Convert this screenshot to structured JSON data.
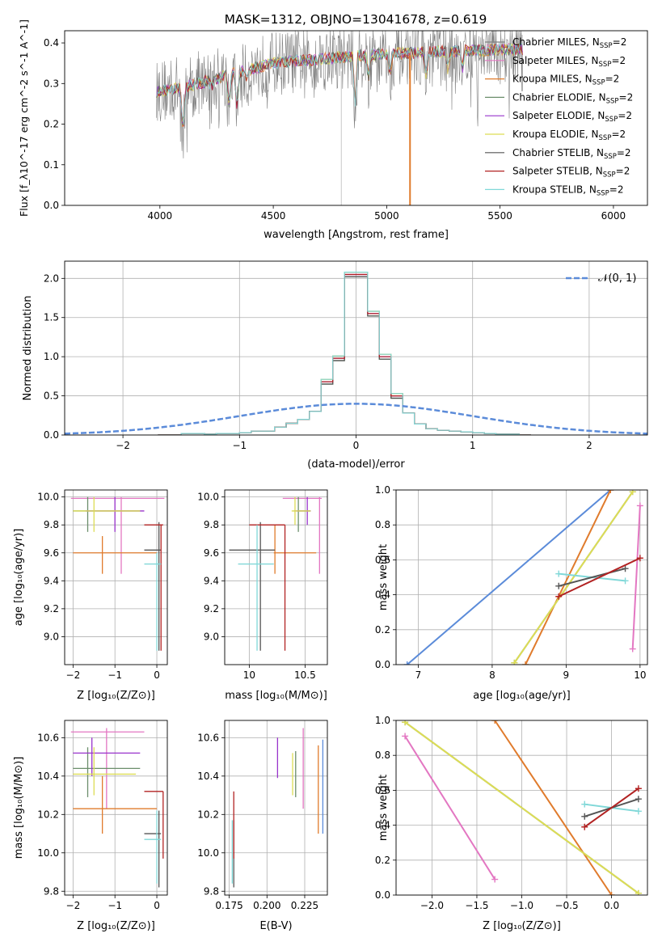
{
  "figure_title": "MASK=1312, OBJNO=13041678, z=0.619",
  "colors": {
    "chabrier_miles": "#808080",
    "salpeter_miles": "#e377c2",
    "kroupa_miles": "#e07b2c",
    "chabrier_elodie": "#6b8e6b",
    "salpeter_elodie": "#9933cc",
    "kroupa_elodie": "#dddd55",
    "chabrier_stelib": "#555555",
    "salpeter_stelib": "#b22222",
    "kroupa_stelib": "#80d8d8",
    "gaussian": "#5b8bd9"
  },
  "chart_data": [
    {
      "id": "spectrum",
      "type": "line",
      "xlabel": "wavelength [Angstrom, rest frame]",
      "ylabel": "Flux [f_λ10^-17 erg cm^-2 s^-1 A^-1]",
      "xlim": [
        3580,
        6150
      ],
      "ylim": [
        0,
        0.43
      ],
      "xticks": [
        4000,
        4500,
        5000,
        5500,
        6000
      ],
      "yticks": [
        0.0,
        0.1,
        0.2,
        0.3,
        0.4
      ],
      "grid": false,
      "legend_position": "right",
      "legend": [
        {
          "label": "Chabrier MILES, N",
          "sub": "SSP",
          "suffix": "=2",
          "color": "#808080"
        },
        {
          "label": "Salpeter MILES, N",
          "sub": "SSP",
          "suffix": "=2",
          "color": "#e377c2"
        },
        {
          "label": "Kroupa MILES, N",
          "sub": "SSP",
          "suffix": "=2",
          "color": "#e07b2c"
        },
        {
          "label": "Chabrier ELODIE, N",
          "sub": "SSP",
          "suffix": "=2",
          "color": "#6b8e6b"
        },
        {
          "label": "Salpeter ELODIE, N",
          "sub": "SSP",
          "suffix": "=2",
          "color": "#9933cc"
        },
        {
          "label": "Kroupa ELODIE, N",
          "sub": "SSP",
          "suffix": "=2",
          "color": "#dddd55"
        },
        {
          "label": "Chabrier STELIB, N",
          "sub": "SSP",
          "suffix": "=2",
          "color": "#555555"
        },
        {
          "label": "Salpeter STELIB, N",
          "sub": "SSP",
          "suffix": "=2",
          "color": "#b22222"
        },
        {
          "label": "Kroupa STELIB, N",
          "sub": "SSP",
          "suffix": "=2",
          "color": "#80d8d8"
        }
      ],
      "data_range": [
        3985,
        5600
      ],
      "continuum": [
        [
          3985,
          0.28
        ],
        [
          4100,
          0.29
        ],
        [
          4300,
          0.32
        ],
        [
          4500,
          0.35
        ],
        [
          4700,
          0.36
        ],
        [
          4900,
          0.37
        ],
        [
          5100,
          0.375
        ],
        [
          5300,
          0.38
        ],
        [
          5600,
          0.385
        ]
      ],
      "absorption_dips": [
        [
          4102,
          0.15
        ],
        [
          4227,
          0.28
        ],
        [
          4305,
          0.22
        ],
        [
          4340,
          0.22
        ],
        [
          4383,
          0.3
        ],
        [
          4861,
          0.23
        ],
        [
          4920,
          0.3
        ],
        [
          5015,
          0.31
        ],
        [
          5175,
          0.3
        ],
        [
          5270,
          0.32
        ],
        [
          5335,
          0.33
        ]
      ],
      "spikes": [
        [
          4800,
          0.0
        ],
        [
          5103,
          0.0
        ]
      ]
    },
    {
      "id": "residuals",
      "type": "line",
      "xlabel": "(data-model)/error",
      "ylabel": "Normed distribution",
      "xlim": [
        -2.5,
        2.5
      ],
      "ylim": [
        0,
        2.22
      ],
      "xticks": [
        -2,
        -1,
        0,
        1,
        2
      ],
      "yticks": [
        0.0,
        0.5,
        1.0,
        1.5,
        2.0
      ],
      "grid": true,
      "legend_position": "top-right",
      "legend": [
        {
          "label": "𝒩(0, 1)",
          "color": "#5b8bd9",
          "dashed": true
        }
      ],
      "bin_edges": [
        -1.7,
        -1.6,
        -1.5,
        -1.4,
        -1.3,
        -1.2,
        -1.1,
        -1.0,
        -0.9,
        -0.8,
        -0.7,
        -0.6,
        -0.5,
        -0.4,
        -0.3,
        -0.2,
        -0.1,
        0.0,
        0.1,
        0.2,
        0.3,
        0.4,
        0.5,
        0.6,
        0.7,
        0.8,
        0.9,
        1.0,
        1.1,
        1.2,
        1.3,
        1.4,
        1.5
      ],
      "histogram": [
        0.0,
        0.0,
        0.02,
        0.02,
        0.01,
        0.02,
        0.02,
        0.03,
        0.05,
        0.05,
        0.1,
        0.15,
        0.2,
        0.3,
        0.68,
        0.98,
        2.05,
        2.05,
        1.55,
        1.0,
        0.5,
        0.28,
        0.14,
        0.08,
        0.06,
        0.05,
        0.04,
        0.03,
        0.02,
        0.01,
        0.01,
        0.0
      ],
      "gaussian": {
        "mu": 0,
        "sigma": 1
      }
    },
    {
      "id": "age_vs_Z",
      "type": "scatter",
      "xlabel": "Z [log₁₀(Z/Z⊙)]",
      "ylabel": "age  [log₁₀(age/yr)]",
      "xlim": [
        -2.2,
        0.25
      ],
      "ylim": [
        8.8,
        10.05
      ],
      "xticks": [
        -2,
        -1,
        0
      ],
      "xtick_labels": [
        "−2",
        "−1",
        "0"
      ],
      "yticks": [
        9.0,
        9.2,
        9.4,
        9.6,
        9.8,
        10.0
      ],
      "yticklabels": [
        "9.0",
        "9.2",
        "9.4",
        "9.6",
        "9.8",
        "10.0"
      ],
      "grid": true,
      "points": [
        {
          "x": -0.85,
          "y": 9.99,
          "x_span": [
            -2.05,
            0.18
          ],
          "y_span": [
            9.45,
            10.0
          ],
          "color": "#e377c2"
        },
        {
          "x": -1.3,
          "y": 9.6,
          "x_span": [
            -2.0,
            0.0
          ],
          "y_span": [
            9.45,
            9.72
          ],
          "color": "#e07b2c"
        },
        {
          "x": -1.65,
          "y": 9.9,
          "x_span": [
            -2.0,
            -0.4
          ],
          "y_span": [
            9.75,
            10.0
          ],
          "color": "#6b8e6b"
        },
        {
          "x": -1.0,
          "y": 9.9,
          "x_span": [
            -1.7,
            -0.3
          ],
          "y_span": [
            9.75,
            10.0
          ],
          "color": "#9933cc"
        },
        {
          "x": -1.5,
          "y": 9.9,
          "x_span": [
            -2.0,
            -0.4
          ],
          "y_span": [
            9.75,
            10.0
          ],
          "color": "#dddd55"
        },
        {
          "x": 0.05,
          "y": 9.62,
          "x_span": [
            -0.3,
            0.1
          ],
          "y_span": [
            8.9,
            9.82
          ],
          "color": "#555555"
        },
        {
          "x": 0.1,
          "y": 9.8,
          "x_span": [
            -0.3,
            0.15
          ],
          "y_span": [
            8.9,
            9.8
          ],
          "color": "#b22222"
        },
        {
          "x": 0.0,
          "y": 9.52,
          "x_span": [
            -0.3,
            0.1
          ],
          "y_span": [
            8.9,
            9.6
          ],
          "color": "#80d8d8"
        }
      ]
    },
    {
      "id": "age_vs_mass",
      "type": "scatter",
      "xlabel": "mass [log₁₀(M/M⊙)]",
      "ylabel": "",
      "xlim": [
        9.78,
        10.7
      ],
      "ylim": [
        8.8,
        10.05
      ],
      "xticks": [
        10.0,
        10.5
      ],
      "xticklabels": [
        "10",
        "10.5"
      ],
      "yticks": [
        9.0,
        9.2,
        9.4,
        9.6,
        9.8,
        10.0
      ],
      "yticklabels": [
        "9.0",
        "9.2",
        "9.4",
        "9.6",
        "9.8",
        "10.0"
      ],
      "grid": true,
      "points": [
        {
          "x": 10.63,
          "y": 9.99,
          "x_span": [
            10.3,
            10.65
          ],
          "y_span": [
            9.45,
            10.0
          ],
          "color": "#e377c2"
        },
        {
          "x": 10.23,
          "y": 9.6,
          "x_span": [
            10.22,
            10.6
          ],
          "y_span": [
            9.45,
            9.8
          ],
          "color": "#e07b2c"
        },
        {
          "x": 10.44,
          "y": 9.9,
          "x_span": [
            10.43,
            10.55
          ],
          "y_span": [
            9.75,
            10.0
          ],
          "color": "#6b8e6b"
        },
        {
          "x": 10.52,
          "y": 9.9,
          "x_span": [
            10.4,
            10.55
          ],
          "y_span": [
            9.8,
            10.0
          ],
          "color": "#9933cc"
        },
        {
          "x": 10.41,
          "y": 9.9,
          "x_span": [
            10.38,
            10.55
          ],
          "y_span": [
            9.8,
            10.0
          ],
          "color": "#dddd55"
        },
        {
          "x": 10.1,
          "y": 9.62,
          "x_span": [
            9.82,
            10.23
          ],
          "y_span": [
            8.9,
            9.82
          ],
          "color": "#555555"
        },
        {
          "x": 10.32,
          "y": 9.8,
          "x_span": [
            10.0,
            10.32
          ],
          "y_span": [
            8.9,
            9.8
          ],
          "color": "#b22222"
        },
        {
          "x": 10.07,
          "y": 9.52,
          "x_span": [
            9.9,
            10.22
          ],
          "y_span": [
            8.9,
            9.8
          ],
          "color": "#80d8d8"
        }
      ]
    },
    {
      "id": "massweight_vs_age",
      "type": "line",
      "xlabel": "age  [log₁₀(age/yr)]",
      "ylabel": "mass weight",
      "xlim": [
        6.7,
        10.1
      ],
      "ylim": [
        0,
        1.0
      ],
      "xticks": [
        7,
        8,
        9,
        10
      ],
      "yticks": [
        0.0,
        0.2,
        0.4,
        0.6,
        0.8,
        1.0
      ],
      "yticklabels": [
        "0.0",
        "0.2",
        "0.4",
        "0.6",
        "0.8",
        "1.0"
      ],
      "grid": true,
      "segments": [
        {
          "p1": [
            6.85,
            0.0
          ],
          "p2": [
            9.6,
            1.0
          ],
          "color": "#5b8bd9"
        },
        {
          "p1": [
            8.45,
            0.0
          ],
          "p2": [
            9.6,
            1.0
          ],
          "color": "#e07b2c"
        },
        {
          "p1": [
            8.3,
            0.01
          ],
          "p2": [
            9.9,
            0.99
          ],
          "color": "#6b8e6b"
        },
        {
          "p1": [
            8.3,
            0.01
          ],
          "p2": [
            9.9,
            0.99
          ],
          "color": "#dddd55"
        },
        {
          "p1": [
            9.9,
            0.09
          ],
          "p2": [
            10.0,
            0.91
          ],
          "color": "#e377c2"
        },
        {
          "p1": [
            8.9,
            0.52
          ],
          "p2": [
            9.8,
            0.48
          ],
          "color": "#80d8d8"
        },
        {
          "p1": [
            8.9,
            0.45
          ],
          "p2": [
            9.8,
            0.55
          ],
          "color": "#555555"
        },
        {
          "p1": [
            8.9,
            0.39
          ],
          "p2": [
            10.0,
            0.61
          ],
          "color": "#b22222"
        }
      ]
    },
    {
      "id": "mass_vs_Z",
      "type": "scatter",
      "xlabel": "Z [log₁₀(Z/Z⊙)]",
      "ylabel": "mass [log₁₀(M/M⊙)]",
      "xlim": [
        -2.2,
        0.25
      ],
      "ylim": [
        9.78,
        10.69
      ],
      "xticks": [
        -2,
        -1,
        0
      ],
      "xtick_labels": [
        "−2",
        "−1",
        "0"
      ],
      "yticks": [
        9.8,
        10.0,
        10.2,
        10.4,
        10.6
      ],
      "yticklabels": [
        "9.8",
        "10.0",
        "10.2",
        "10.4",
        "10.6"
      ],
      "grid": true,
      "points": [
        {
          "x": -1.2,
          "y": 10.63,
          "x_span": [
            -2.05,
            -0.3
          ],
          "y_span": [
            10.23,
            10.65
          ],
          "color": "#e377c2"
        },
        {
          "x": -1.3,
          "y": 10.23,
          "x_span": [
            -2.0,
            0.0
          ],
          "y_span": [
            10.1,
            10.4
          ],
          "color": "#e07b2c"
        },
        {
          "x": -1.65,
          "y": 10.44,
          "x_span": [
            -2.0,
            -0.4
          ],
          "y_span": [
            10.29,
            10.55
          ],
          "color": "#6b8e6b"
        },
        {
          "x": -1.55,
          "y": 10.52,
          "x_span": [
            -2.0,
            -0.4
          ],
          "y_span": [
            10.4,
            10.6
          ],
          "color": "#9933cc"
        },
        {
          "x": -1.5,
          "y": 10.41,
          "x_span": [
            -2.0,
            -0.5
          ],
          "y_span": [
            10.3,
            10.55
          ],
          "color": "#dddd55"
        },
        {
          "x": 0.05,
          "y": 10.1,
          "x_span": [
            -0.3,
            0.1
          ],
          "y_span": [
            9.82,
            10.22
          ],
          "color": "#555555"
        },
        {
          "x": 0.15,
          "y": 10.32,
          "x_span": [
            -0.3,
            0.15
          ],
          "y_span": [
            9.97,
            10.32
          ],
          "color": "#b22222"
        },
        {
          "x": 0.0,
          "y": 10.07,
          "x_span": [
            -0.3,
            0.1
          ],
          "y_span": [
            9.84,
            10.22
          ],
          "color": "#80d8d8"
        }
      ]
    },
    {
      "id": "mass_vs_EBV",
      "type": "scatter",
      "xlabel": "E(B-V)",
      "ylabel": "",
      "xlim": [
        0.172,
        0.24
      ],
      "ylim": [
        9.78,
        10.69
      ],
      "xticks": [
        0.175,
        0.2,
        0.225
      ],
      "xticklabels": [
        "0.175",
        "0.200",
        "0.225"
      ],
      "yticks": [
        9.8,
        10.0,
        10.2,
        10.4,
        10.6
      ],
      "yticklabels": [
        "9.8",
        "10.0",
        "10.2",
        "10.4",
        "10.6"
      ],
      "grid": true,
      "points": [
        {
          "x": 0.224,
          "y": 10.45,
          "y_span": [
            10.23,
            10.65
          ],
          "color": "#e377c2"
        },
        {
          "x": 0.234,
          "y": 10.33,
          "y_span": [
            10.1,
            10.56
          ],
          "color": "#e07b2c"
        },
        {
          "x": 0.219,
          "y": 10.41,
          "y_span": [
            10.29,
            10.53
          ],
          "color": "#6b8e6b"
        },
        {
          "x": 0.207,
          "y": 10.5,
          "y_span": [
            10.39,
            10.6
          ],
          "color": "#9933cc"
        },
        {
          "x": 0.217,
          "y": 10.41,
          "y_span": [
            10.3,
            10.52
          ],
          "color": "#dddd55"
        },
        {
          "x": 0.178,
          "y": 10.0,
          "y_span": [
            9.82,
            10.17
          ],
          "color": "#555555"
        },
        {
          "x": 0.178,
          "y": 10.14,
          "y_span": [
            9.97,
            10.32
          ],
          "color": "#b22222"
        },
        {
          "x": 0.237,
          "y": 10.34,
          "y_span": [
            10.1,
            10.59
          ],
          "color": "#5b8bd9"
        },
        {
          "x": 0.177,
          "y": 10.0,
          "y_span": [
            9.84,
            10.17
          ],
          "color": "#80d8d8"
        }
      ]
    },
    {
      "id": "massweight_vs_Z",
      "type": "line",
      "xlabel": "Z [log₁₀(Z/Z⊙)]",
      "ylabel": "mass weight",
      "xlim": [
        -2.4,
        0.4
      ],
      "ylim": [
        0,
        1.0
      ],
      "xticks": [
        -2.0,
        -1.5,
        -1.0,
        -0.5,
        0.0
      ],
      "xticklabels": [
        "−2.0",
        "−1.5",
        "−1.0",
        "−0.5",
        "0.0"
      ],
      "yticks": [
        0.0,
        0.2,
        0.4,
        0.6,
        0.8,
        1.0
      ],
      "yticklabels": [
        "0.0",
        "0.2",
        "0.4",
        "0.6",
        "0.8",
        "1.0"
      ],
      "grid": true,
      "segments": [
        {
          "p1": [
            -1.3,
            1.0
          ],
          "p2": [
            0.0,
            0.0
          ],
          "color": "#e07b2c"
        },
        {
          "p1": [
            -2.3,
            0.99
          ],
          "p2": [
            0.3,
            0.01
          ],
          "color": "#6b8e6b"
        },
        {
          "p1": [
            -2.3,
            0.99
          ],
          "p2": [
            0.3,
            0.01
          ],
          "color": "#dddd55"
        },
        {
          "p1": [
            -2.3,
            0.91
          ],
          "p2": [
            -1.3,
            0.09
          ],
          "color": "#e377c2"
        },
        {
          "p1": [
            -0.3,
            0.52
          ],
          "p2": [
            0.3,
            0.48
          ],
          "color": "#80d8d8"
        },
        {
          "p1": [
            -0.3,
            0.45
          ],
          "p2": [
            0.3,
            0.55
          ],
          "color": "#555555"
        },
        {
          "p1": [
            -0.3,
            0.39
          ],
          "p2": [
            0.3,
            0.61
          ],
          "color": "#b22222"
        }
      ]
    }
  ]
}
